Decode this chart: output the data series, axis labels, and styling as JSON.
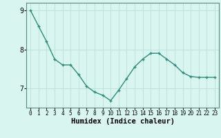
{
  "x": [
    0,
    1,
    2,
    3,
    4,
    5,
    6,
    7,
    8,
    9,
    10,
    11,
    12,
    13,
    14,
    15,
    16,
    17,
    18,
    19,
    20,
    21,
    22,
    23
  ],
  "y": [
    9.0,
    8.6,
    8.2,
    7.75,
    7.6,
    7.6,
    7.35,
    7.05,
    6.9,
    6.82,
    6.68,
    6.95,
    7.25,
    7.55,
    7.75,
    7.9,
    7.9,
    7.75,
    7.6,
    7.4,
    7.3,
    7.28,
    7.28,
    7.28
  ],
  "line_color": "#2e8b7a",
  "marker": "+",
  "marker_size": 3,
  "xlabel": "Humidex (Indice chaleur)",
  "ylim": [
    6.5,
    9.2
  ],
  "xlim": [
    -0.5,
    23.5
  ],
  "yticks": [
    7,
    8,
    9
  ],
  "xticks": [
    0,
    1,
    2,
    3,
    4,
    5,
    6,
    7,
    8,
    9,
    10,
    11,
    12,
    13,
    14,
    15,
    16,
    17,
    18,
    19,
    20,
    21,
    22,
    23
  ],
  "background_color": "#d8f5ef",
  "grid_color": "#b8e0d8",
  "tick_labelsize": 5.5,
  "xlabel_fontsize": 7.5,
  "ytick_labelsize": 7.0
}
